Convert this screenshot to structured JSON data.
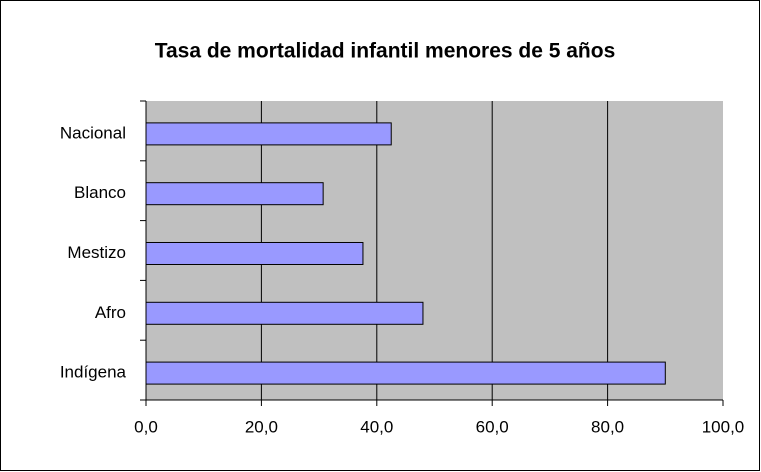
{
  "chart_data": {
    "type": "bar",
    "orientation": "horizontal",
    "title": "Tasa de mortalidad infantil menores de 5 años",
    "categories": [
      "Nacional",
      "Blanco",
      "Mestizo",
      "Afro",
      "Indígena"
    ],
    "values": [
      42.5,
      30.7,
      37.6,
      48.0,
      90.0
    ],
    "color": "#9999ff",
    "xlim": [
      0,
      100
    ],
    "xticks": [
      {
        "value": 0,
        "label": "0,0"
      },
      {
        "value": 20,
        "label": "20,0"
      },
      {
        "value": 40,
        "label": "40,0"
      },
      {
        "value": 60,
        "label": "60,0"
      },
      {
        "value": 80,
        "label": "80,0"
      },
      {
        "value": 100,
        "label": "100,0"
      }
    ],
    "grid": true
  }
}
